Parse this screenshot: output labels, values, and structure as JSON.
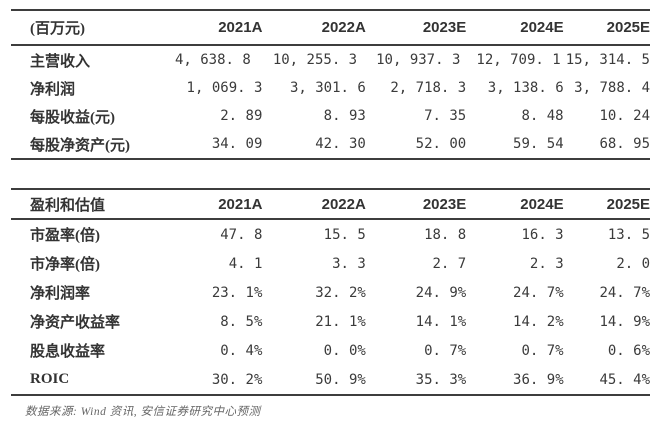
{
  "colors": {
    "page_bg": "#ffffff",
    "text": "#3b3b3b",
    "rule_line": "#3d3d3d",
    "footer_text": "#666666"
  },
  "table1": {
    "header": [
      "(百万元)",
      "2021A",
      "2022A",
      "2023E",
      "2024E",
      "2025E"
    ],
    "rows": [
      {
        "label": "主营收入",
        "values": [
          "4, 638. 8",
          "10, 255. 3",
          "10, 937. 3",
          "12, 709. 1",
          "15, 314. 5"
        ]
      },
      {
        "label": "净利润",
        "values": [
          "1, 069. 3",
          "3, 301. 6",
          "2, 718. 3",
          "3, 138. 6",
          "3, 788. 4"
        ]
      },
      {
        "label": "每股收益(元)",
        "values": [
          "2. 89",
          "8. 93",
          "7. 35",
          "8. 48",
          "10. 24"
        ]
      },
      {
        "label": "每股净资产(元)",
        "values": [
          "34. 09",
          "42. 30",
          "52. 00",
          "59. 54",
          "68. 95"
        ]
      }
    ]
  },
  "table2": {
    "header": [
      "盈利和估值",
      "2021A",
      "2022A",
      "2023E",
      "2024E",
      "2025E"
    ],
    "rows": [
      {
        "label": "市盈率(倍)",
        "values": [
          "47. 8",
          "15. 5",
          "18. 8",
          "16. 3",
          "13. 5"
        ]
      },
      {
        "label": "市净率(倍)",
        "values": [
          "4. 1",
          "3. 3",
          "2. 7",
          "2. 3",
          "2. 0"
        ]
      },
      {
        "label": "净利润率",
        "values": [
          "23. 1%",
          "32. 2%",
          "24. 9%",
          "24. 7%",
          "24. 7%"
        ]
      },
      {
        "label": "净资产收益率",
        "values": [
          "8. 5%",
          "21. 1%",
          "14. 1%",
          "14. 2%",
          "14. 9%"
        ]
      },
      {
        "label": "股息收益率",
        "values": [
          "0. 4%",
          "0. 0%",
          "0. 7%",
          "0. 7%",
          "0. 6%"
        ]
      },
      {
        "label": "ROIC",
        "values": [
          "30. 2%",
          "50. 9%",
          "35. 3%",
          "36. 9%",
          "45. 4%"
        ]
      }
    ]
  },
  "footer": {
    "source": "数据来源: Wind 资讯, 安信证券研究中心预测"
  }
}
